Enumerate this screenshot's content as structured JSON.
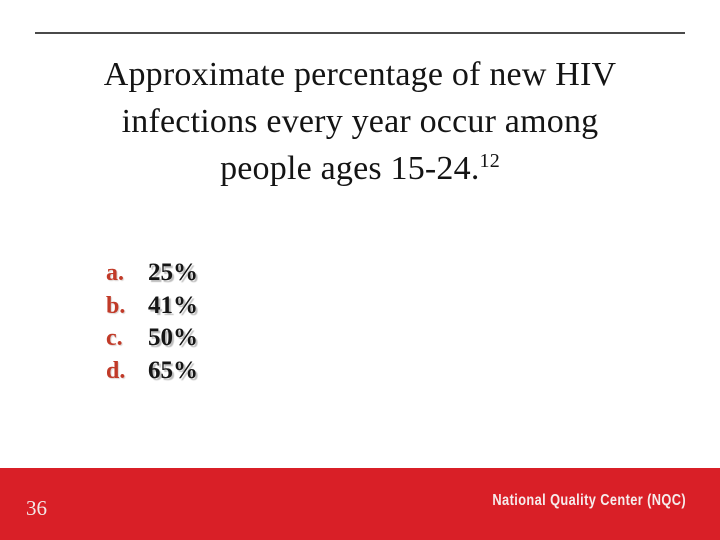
{
  "slide": {
    "title": {
      "lines": [
        "Approximate percentage of new HIV",
        "infections every year occur among",
        "people ages 15-24."
      ],
      "superscript": "12"
    },
    "options": [
      {
        "letter": "a.",
        "value": "25%"
      },
      {
        "letter": "b.",
        "value": "41%"
      },
      {
        "letter": "c.",
        "value": "50%"
      },
      {
        "letter": "d.",
        "value": "65%"
      }
    ],
    "footer": {
      "slide_number": "36",
      "brand": "National Quality Center (NQC)"
    },
    "colors": {
      "option_letter_red": "#c13a28",
      "footer_band_red": "#d91f27",
      "footer_text": "#f6ecec",
      "title_text": "#141414",
      "top_rule_gray": "#4a4a4a"
    }
  }
}
